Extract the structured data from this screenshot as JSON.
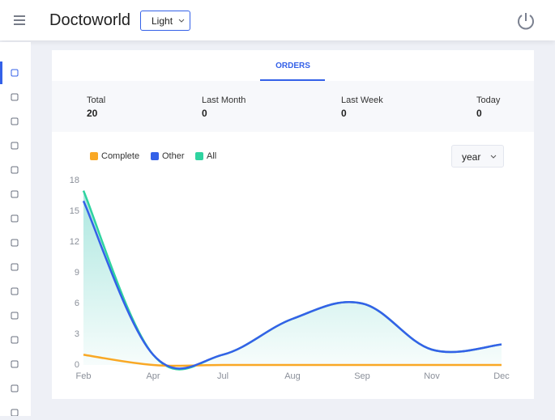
{
  "header": {
    "title": "Doctoworld",
    "theme": "Light"
  },
  "tab": "ORDERS",
  "stats": [
    {
      "label": "Total",
      "value": 20
    },
    {
      "label": "Last Month",
      "value": 0
    },
    {
      "label": "Last Week",
      "value": 0
    },
    {
      "label": "Today",
      "value": 0
    }
  ],
  "period": "year",
  "chart_data": {
    "type": "line",
    "categories": [
      "Feb",
      "Apr",
      "Jul",
      "Aug",
      "Sep",
      "Nov",
      "Dec"
    ],
    "series": [
      {
        "name": "Complete",
        "color": "#f9a825",
        "values": [
          1,
          0,
          0,
          0,
          0,
          0,
          0
        ]
      },
      {
        "name": "Other",
        "color": "#3461e8",
        "values": [
          16,
          1,
          1,
          4.5,
          6,
          1.5,
          2
        ]
      },
      {
        "name": "All",
        "color": "#2fd3a0",
        "values": [
          17,
          1,
          1,
          4.5,
          6,
          1.5,
          2
        ]
      }
    ],
    "ylim": [
      0,
      18
    ],
    "yticks": [
      0,
      3,
      6,
      9,
      12,
      15,
      18
    ],
    "area": "All"
  }
}
